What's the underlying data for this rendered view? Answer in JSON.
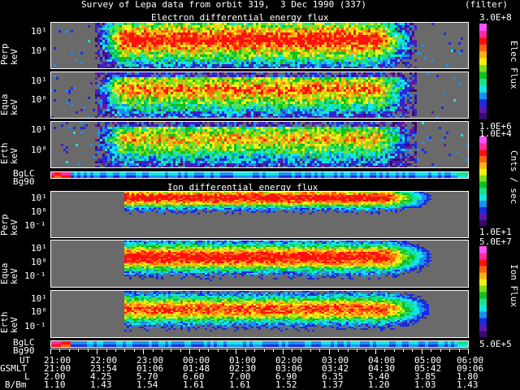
{
  "header": {
    "title": "Survey of Lepa data from orbit 319,  3 Dec 1990 (337)",
    "filter": "(filter)"
  },
  "electron_section": {
    "title": "Electron differential energy flux",
    "panels": [
      {
        "label_top": "Perp",
        "label_bot": "keV",
        "ticks": [
          "10¹",
          "10⁰"
        ]
      },
      {
        "label_top": "Equa",
        "label_bot": "keV",
        "ticks": [
          "10¹",
          "10⁰"
        ]
      },
      {
        "label_top": "Erth",
        "label_bot": "keV",
        "ticks": [
          "10¹",
          "10⁰"
        ]
      }
    ],
    "strip_labels": [
      "BgLC",
      "Bg90"
    ]
  },
  "ion_section": {
    "title": "Ion differential energy flux",
    "panels": [
      {
        "label_top": "Perp",
        "label_bot": "keV",
        "ticks": [
          "10¹",
          "10⁰",
          "10⁻¹"
        ]
      },
      {
        "label_top": "Equa",
        "label_bot": "keV",
        "ticks": [
          "10¹",
          "10⁰",
          "10⁻¹"
        ]
      },
      {
        "label_top": "Erth",
        "label_bot": "keV",
        "ticks": [
          "10¹",
          "10⁰",
          "10⁻¹"
        ]
      }
    ],
    "strip_labels": [
      "BgLC",
      "Bg90"
    ]
  },
  "colorbars": {
    "elec": {
      "max": "3.0E+8",
      "min": "1.0E+6",
      "label": "Elec Flux"
    },
    "cnts": {
      "max": "1.0E+4",
      "min": "1.0E+1",
      "label": "Cnts / sec"
    },
    "ion": {
      "max": "5.0E+7",
      "min": "5.0E+5",
      "label": "Ion Flux"
    }
  },
  "axis_table": {
    "labels": [
      "UT",
      "GSMLT",
      "L",
      "B/Bm"
    ],
    "UT": [
      "21:00",
      "22:00",
      "23:00",
      "00:00",
      "01:00",
      "02:00",
      "03:00",
      "04:00",
      "05:00",
      "06:00"
    ],
    "GSMLT": [
      "21:00",
      "23:54",
      "01:06",
      "01:48",
      "02:30",
      "03:06",
      "03:42",
      "04:30",
      "05:42",
      "09:06"
    ],
    "L": [
      "2.00",
      "4.25",
      "5.70",
      "6.60",
      "7.00",
      "6.90",
      "6.35",
      "5.40",
      "3.85",
      "1.80"
    ],
    "BBm": [
      "1.10",
      "1.43",
      "1.54",
      "1.61",
      "1.61",
      "1.52",
      "1.37",
      "1.20",
      "1.03",
      "1.43"
    ]
  },
  "palette": [
    "#3a0a70",
    "#5a18b0",
    "#1a2ae0",
    "#1a8ff0",
    "#14e6e6",
    "#18e08a",
    "#10c020",
    "#7ae018",
    "#f0f018",
    "#ffb010",
    "#ff6010",
    "#ff1010",
    "#ff2aa0",
    "#ff50ff"
  ],
  "background_color": "#6a6a6a"
}
